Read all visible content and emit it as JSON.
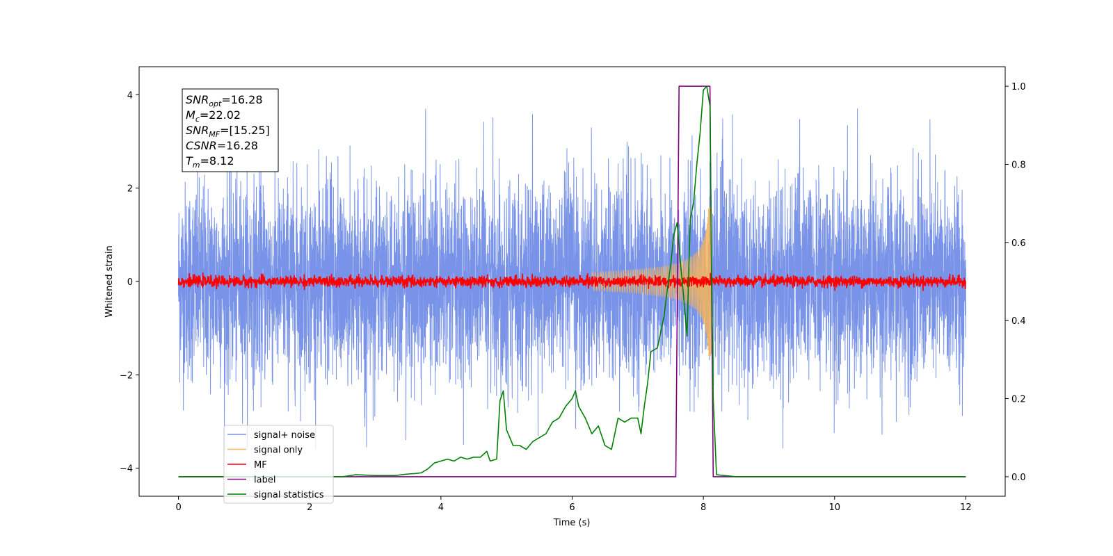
{
  "chart_data": {
    "type": "line",
    "title": "",
    "xlabel": "Time (s)",
    "ylabel": "Whitened strain",
    "y2label": "",
    "xlim": [
      -0.6,
      12.6
    ],
    "ylim": [
      -4.6,
      4.6
    ],
    "y2lim": [
      -0.05,
      1.05
    ],
    "x_ticks": [
      0,
      2,
      4,
      6,
      8,
      10,
      12
    ],
    "x_tick_labels": [
      "0",
      "2",
      "4",
      "6",
      "8",
      "10",
      "12"
    ],
    "y_ticks": [
      -4,
      -2,
      0,
      2,
      4
    ],
    "y_tick_labels": [
      "−4",
      "−2",
      "0",
      "2",
      "4"
    ],
    "y2_ticks": [
      0.0,
      0.2,
      0.4,
      0.6,
      0.8,
      1.0
    ],
    "y2_tick_labels": [
      "0.0",
      "0.2",
      "0.4",
      "0.6",
      "0.8",
      "1.0"
    ],
    "grid": false,
    "legend_placement": "lower-left",
    "info_box": {
      "lines": [
        {
          "sym": "SNR",
          "sub": "opt",
          "val": "=16.28"
        },
        {
          "sym": "M",
          "sub": "c",
          "val": "=22.02"
        },
        {
          "sym": "SNR",
          "sub": "MF",
          "val": "=[15.25]"
        },
        {
          "sym": "CSNR",
          "sub": "",
          "val": "=16.28"
        },
        {
          "sym": "T",
          "sub": "m",
          "val": "=8.12"
        }
      ]
    },
    "series": [
      {
        "name": "signal+ noise",
        "color": "#7893e8",
        "axis": "left",
        "kind": "noise-band",
        "x_range": [
          0,
          12
        ],
        "amplitude_envelope": [
          2.2,
          3.7
        ]
      },
      {
        "name": "signal only",
        "color": "#f5b45a",
        "axis": "left",
        "kind": "chirp",
        "x_range": [
          6.3,
          8.12
        ],
        "peak_amplitude": 1.6
      },
      {
        "name": "MF",
        "color": "#ff0000",
        "axis": "left",
        "kind": "noise-band",
        "x_range": [
          0,
          12
        ],
        "amplitude_envelope": [
          0.1,
          0.25
        ]
      },
      {
        "name": "label",
        "color": "#800080",
        "axis": "right",
        "x": [
          0,
          7.58,
          7.63,
          8.1,
          8.15,
          12
        ],
        "values": [
          0,
          0,
          1,
          1,
          0,
          0
        ]
      },
      {
        "name": "signal statistics",
        "color": "#008000",
        "axis": "right",
        "x": [
          0,
          0.5,
          1.0,
          1.5,
          2.0,
          2.5,
          2.7,
          3.0,
          3.3,
          3.5,
          3.6,
          3.7,
          3.8,
          3.9,
          4.0,
          4.1,
          4.2,
          4.3,
          4.4,
          4.5,
          4.6,
          4.7,
          4.75,
          4.85,
          4.9,
          4.95,
          5.0,
          5.05,
          5.1,
          5.2,
          5.3,
          5.4,
          5.5,
          5.6,
          5.7,
          5.8,
          5.9,
          6.0,
          6.05,
          6.1,
          6.2,
          6.3,
          6.4,
          6.5,
          6.6,
          6.7,
          6.8,
          6.9,
          7.0,
          7.05,
          7.1,
          7.15,
          7.2,
          7.3,
          7.4,
          7.45,
          7.5,
          7.55,
          7.6,
          7.65,
          7.7,
          7.75,
          7.8,
          7.85,
          7.9,
          7.95,
          8.0,
          8.05,
          8.1,
          8.12,
          8.15,
          8.2,
          8.5,
          12
        ],
        "values": [
          0,
          0,
          0,
          0,
          0,
          0,
          0.005,
          0.003,
          0.003,
          0.007,
          0.008,
          0.01,
          0.02,
          0.035,
          0.04,
          0.045,
          0.04,
          0.05,
          0.045,
          0.05,
          0.05,
          0.065,
          0.04,
          0.045,
          0.195,
          0.22,
          0.12,
          0.1,
          0.08,
          0.08,
          0.07,
          0.09,
          0.1,
          0.11,
          0.14,
          0.15,
          0.18,
          0.2,
          0.22,
          0.18,
          0.15,
          0.11,
          0.13,
          0.08,
          0.07,
          0.15,
          0.14,
          0.15,
          0.15,
          0.11,
          0.18,
          0.24,
          0.32,
          0.33,
          0.41,
          0.48,
          0.54,
          0.62,
          0.65,
          0.55,
          0.46,
          0.36,
          0.66,
          0.7,
          0.8,
          0.88,
          0.99,
          1.0,
          0.95,
          0.6,
          0.2,
          0.005,
          0,
          0
        ]
      }
    ]
  }
}
